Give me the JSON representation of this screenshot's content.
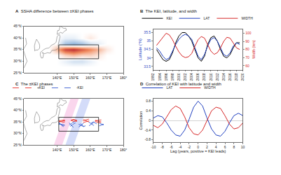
{
  "chart_data": [
    {
      "label": "A",
      "type": "heatmap",
      "title": "SSHA difference between ±KEI phases",
      "x": [
        125,
        130,
        135,
        140,
        145,
        150,
        155,
        160,
        165,
        170,
        175,
        180
      ],
      "y": [
        25,
        27.5,
        30,
        32.5,
        35,
        37.5,
        40,
        42.5,
        45
      ],
      "z": [
        [
          0,
          0,
          0,
          0,
          0,
          0,
          0,
          0,
          0,
          0,
          0,
          0
        ],
        [
          0,
          0,
          0,
          0,
          0,
          0,
          0,
          0,
          0,
          0,
          0,
          0
        ],
        [
          0,
          0,
          0,
          0,
          -1,
          -2,
          -2,
          -1,
          0,
          0,
          0,
          0
        ],
        [
          0,
          0,
          0,
          0,
          2,
          3,
          2,
          2,
          1,
          0,
          0,
          0
        ],
        [
          0,
          0,
          0,
          3,
          8,
          9,
          7,
          5,
          3,
          1,
          0,
          0
        ],
        [
          0,
          0,
          0,
          0,
          -4,
          -5,
          -4,
          -2,
          -1,
          0,
          0,
          0
        ],
        [
          0,
          0,
          0,
          0,
          -1,
          -1,
          0,
          1,
          0,
          0,
          0,
          0
        ],
        [
          0,
          0,
          0,
          0,
          0,
          0,
          0,
          0,
          0,
          0,
          0,
          0
        ],
        [
          0,
          0,
          0,
          0,
          0,
          0,
          0,
          0,
          0,
          0,
          0,
          0
        ]
      ],
      "zlim": [
        -10,
        10
      ],
      "xlim": [
        120,
        180
      ],
      "ylim": [
        25,
        45
      ],
      "xticks": [
        {
          "value": 140,
          "label": "140°E"
        },
        {
          "value": 150,
          "label": "150°E"
        },
        {
          "value": 160,
          "label": "160°E"
        },
        {
          "value": 170,
          "label": "170°E"
        },
        {
          "value": 180,
          "label": "180°"
        }
      ],
      "yticks": [
        {
          "value": 25,
          "label": "25°N"
        },
        {
          "value": 30,
          "label": "30°N"
        },
        {
          "value": 35,
          "label": "35°N"
        },
        {
          "value": 40,
          "label": "40°N"
        },
        {
          "value": 45,
          "label": "45°N"
        }
      ],
      "land": [
        {
          "lon": [
            129.8,
            130.5,
            131.4,
            131.8,
            131.0,
            132.5,
            134.2,
            135.1,
            135.8,
            136.9,
            137.8,
            138.8,
            139.8,
            140.8,
            140.6,
            141.0,
            141.5,
            141.8,
            141.4,
            140.8,
            140.0,
            139.8,
            139.4,
            138.5,
            137.3,
            136.5,
            135.8,
            135.0,
            133.5,
            132.0,
            130.9,
            130.0,
            129.8
          ],
          "lat": [
            32.7,
            31.3,
            31.4,
            32.9,
            33.7,
            33.2,
            33.6,
            33.5,
            33.4,
            34.6,
            34.6,
            34.7,
            35.0,
            35.7,
            36.9,
            38.2,
            39.0,
            40.5,
            41.4,
            41.2,
            40.6,
            39.5,
            38.2,
            37.5,
            37.0,
            36.8,
            36.2,
            35.6,
            35.5,
            35.0,
            34.3,
            33.8,
            32.7
          ]
        },
        {
          "lon": [
            140.0,
            141.0,
            142.0,
            143.3,
            144.4,
            145.6,
            145.2,
            144.0,
            142.8,
            141.8,
            141.6,
            141.1,
            140.3,
            140.0
          ],
          "lat": [
            41.5,
            41.8,
            42.4,
            42.0,
            42.9,
            43.3,
            44.2,
            44.1,
            44.6,
            45.4,
            44.4,
            43.2,
            43.2,
            41.5
          ]
        },
        {
          "lon": [
            126.5,
            127.0,
            128.5,
            129.4,
            129.5,
            129.2,
            128.3,
            127.6,
            126.8,
            126.3,
            126.5
          ],
          "lat": [
            34.4,
            34.7,
            34.8,
            35.5,
            36.5,
            37.5,
            38.6,
            39.4,
            38.0,
            36.5,
            34.4
          ]
        },
        {
          "lon": [
            120.0,
            121.0,
            121.9,
            121.0,
            120.2,
            119.6,
            120.7,
            121.6,
            121.0
          ],
          "lat": [
            27.0,
            28.5,
            30.0,
            31.7,
            33.5,
            35.0,
            36.3,
            37.4,
            40.0
          ]
        }
      ],
      "box": {
        "lon": [
          141,
          165
        ],
        "lat": [
          31,
          37
        ]
      }
    },
    {
      "label": "B",
      "type": "line",
      "title": "The KEI, latitude, and width",
      "x": [
        1993,
        1994,
        1995,
        1996,
        1997,
        1998,
        1999,
        2000,
        2001,
        2002,
        2003,
        2004,
        2005,
        2006,
        2007,
        2008,
        2009,
        2010,
        2011,
        2012,
        2013,
        2014,
        2015,
        2016,
        2017,
        2018,
        2019
      ],
      "series": [
        {
          "name": "KEI",
          "color": "#000000",
          "values": [
            34.5,
            34.2,
            33.9,
            33.8,
            33.9,
            34.3,
            34.9,
            35.3,
            35.5,
            35.5,
            35.3,
            35.0,
            34.5,
            34.0,
            33.8,
            34.1,
            34.8,
            35.2,
            35.3,
            35.0,
            34.5,
            34.1,
            34.0,
            34.2,
            34.6,
            34.9,
            34.9
          ]
        },
        {
          "name": "LAT",
          "color": "#1f3fbf",
          "values": [
            34.6,
            34.4,
            34.1,
            33.9,
            34.0,
            34.4,
            34.8,
            35.1,
            35.3,
            35.4,
            35.3,
            35.1,
            34.6,
            34.1,
            33.9,
            34.2,
            34.7,
            35.1,
            35.2,
            35.0,
            34.6,
            34.2,
            34.1,
            34.3,
            34.7,
            34.9,
            34.8
          ]
        },
        {
          "name": "WIDTH",
          "color": "#d62728",
          "axis": "y2",
          "values": [
            85,
            90,
            96,
            100,
            98,
            92,
            84,
            77,
            72,
            70,
            71,
            75,
            84,
            92,
            96,
            94,
            86,
            78,
            74,
            76,
            82,
            90,
            95,
            94,
            88,
            82,
            80
          ]
        }
      ],
      "xlim": [
        1992,
        2020
      ],
      "xticks": [
        1992,
        1994,
        1996,
        1998,
        2000,
        2002,
        2004,
        2006,
        2008,
        2010,
        2012,
        2014,
        2016,
        2018,
        2020
      ],
      "ylim": [
        33.3,
        35.7
      ],
      "yticks": [
        33.5,
        34,
        34.5,
        35,
        35.5
      ],
      "y2lim": [
        55,
        105
      ],
      "y2ticks": [
        60,
        70,
        80,
        90,
        100
      ],
      "ylabel": "Latitude (°N)",
      "y2label": "Width (km)",
      "legend": "above"
    },
    {
      "label": "C",
      "type": "map",
      "title": "The ±KEI phases",
      "xlim": [
        120,
        180
      ],
      "ylim": [
        25,
        45
      ],
      "xticks": [
        {
          "value": 140,
          "label": "140°E"
        },
        {
          "value": 150,
          "label": "150°E"
        },
        {
          "value": 160,
          "label": "160°E"
        },
        {
          "value": 170,
          "label": "170°E"
        },
        {
          "value": 180,
          "label": "180°"
        }
      ],
      "yticks": [
        {
          "value": 25,
          "label": "25°N"
        },
        {
          "value": 30,
          "label": "30°N"
        },
        {
          "value": 35,
          "label": "35°N"
        },
        {
          "value": 40,
          "label": "40°N"
        },
        {
          "value": 45,
          "label": "45°N"
        }
      ],
      "bands": [
        {
          "color": "#f5a3d6",
          "lon": [
            138,
            143,
            153,
            148
          ],
          "lat": [
            25,
            25,
            45,
            45
          ]
        },
        {
          "color": "#9fb2f2",
          "lon": [
            145,
            150,
            160,
            155
          ],
          "lat": [
            25,
            25,
            45,
            45
          ]
        }
      ],
      "lon": [
        141,
        144,
        147,
        150,
        153,
        156,
        159,
        162,
        165,
        168
      ],
      "series": [
        {
          "name": "+KEI",
          "color": "#e8312a",
          "line_style": "dashed",
          "paths": [
            [
              35.5,
              35.8,
              35.3,
              35.9,
              35.0,
              35.6,
              36.2,
              35.4,
              35.8,
              36.0
            ],
            [
              35.0,
              35.4,
              36.0,
              35.2,
              35.5,
              34.8,
              35.3,
              36.0,
              35.2,
              34.8
            ],
            [
              35.2,
              34.9,
              35.6,
              36.1,
              35.4,
              36.0,
              35.0,
              35.5,
              34.6,
              35.2
            ]
          ]
        },
        {
          "name": "-KEI",
          "color": "#3a5fd0",
          "line_style": "dashed",
          "paths": [
            [
              34.5,
              33.2,
              34.8,
              32.5,
              34.0,
              33.0,
              35.0,
              33.5,
              34.5,
              33.8
            ],
            [
              34.8,
              32.8,
              33.5,
              35.0,
              32.8,
              34.5,
              33.2,
              34.8,
              33.2,
              34.0
            ],
            [
              34.0,
              33.8,
              32.6,
              34.2,
              35.2,
              33.0,
              34.0,
              35.0,
              33.6,
              33.8
            ]
          ]
        }
      ],
      "land": [
        {
          "lon": [
            129.8,
            130.5,
            131.4,
            131.8,
            131.0,
            132.5,
            134.2,
            135.1,
            135.8,
            136.9,
            137.8,
            138.8,
            139.8,
            140.8,
            140.6,
            141.0,
            141.5,
            141.8,
            141.4,
            140.8,
            140.0,
            139.8,
            139.4,
            138.5,
            137.3,
            136.5,
            135.8,
            135.0,
            133.5,
            132.0,
            130.9,
            130.0,
            129.8
          ],
          "lat": [
            32.7,
            31.3,
            31.4,
            32.9,
            33.7,
            33.2,
            33.6,
            33.5,
            33.4,
            34.6,
            34.6,
            34.7,
            35.0,
            35.7,
            36.9,
            38.2,
            39.0,
            40.5,
            41.4,
            41.2,
            40.6,
            39.5,
            38.2,
            37.5,
            37.0,
            36.8,
            36.2,
            35.6,
            35.5,
            35.0,
            34.3,
            33.8,
            32.7
          ]
        },
        {
          "lon": [
            140.0,
            141.0,
            142.0,
            143.3,
            144.4,
            145.6,
            145.2,
            144.0,
            142.8,
            141.8,
            141.6,
            141.1,
            140.3,
            140.0
          ],
          "lat": [
            41.5,
            41.8,
            42.4,
            42.0,
            42.9,
            43.3,
            44.2,
            44.1,
            44.6,
            45.4,
            44.4,
            43.2,
            43.2,
            41.5
          ]
        },
        {
          "lon": [
            126.5,
            127.0,
            128.5,
            129.4,
            129.5,
            129.2,
            128.3,
            127.6,
            126.8,
            126.3,
            126.5
          ],
          "lat": [
            34.4,
            34.7,
            34.8,
            35.5,
            36.5,
            37.5,
            38.6,
            39.4,
            38.0,
            36.5,
            34.4
          ]
        },
        {
          "lon": [
            120.0,
            121.0,
            121.9,
            121.0,
            120.2,
            119.6,
            120.7,
            121.6,
            121.0
          ],
          "lat": [
            27.0,
            28.5,
            30.0,
            31.7,
            33.5,
            35.0,
            36.3,
            37.4,
            40.0
          ]
        }
      ],
      "box": {
        "lon": [
          141,
          165
        ],
        "lat": [
          31,
          37
        ]
      },
      "legend": "above"
    },
    {
      "label": "D",
      "type": "line",
      "title": "Correlation of KEI with latitude and width",
      "x": [
        -10,
        -9,
        -8,
        -7,
        -6,
        -5,
        -4,
        -3,
        -2,
        -1,
        0,
        1,
        2,
        3,
        4,
        5,
        6,
        7,
        8,
        9,
        10
      ],
      "series": [
        {
          "name": "LAT",
          "color": "#1f3fbf",
          "values": [
            0.1,
            0.2,
            0.15,
            -0.1,
            -0.4,
            -0.6,
            -0.65,
            -0.4,
            0.05,
            0.55,
            0.8,
            0.6,
            0.1,
            -0.35,
            -0.6,
            -0.65,
            -0.45,
            -0.1,
            0.2,
            0.3,
            0.2
          ]
        },
        {
          "name": "WIDTH",
          "color": "#d62728",
          "values": [
            -0.2,
            -0.3,
            -0.15,
            0.15,
            0.45,
            0.6,
            0.5,
            0.15,
            -0.3,
            -0.55,
            -0.6,
            -0.4,
            0,
            0.4,
            0.55,
            0.5,
            0.2,
            -0.15,
            -0.35,
            -0.3,
            -0.1
          ]
        }
      ],
      "xlim": [
        -10,
        10
      ],
      "xticks": [
        -10,
        -8,
        -6,
        -4,
        -2,
        0,
        2,
        4,
        6,
        8,
        10
      ],
      "ylim": [
        -0.9,
        0.9
      ],
      "yticks": [
        -0.8,
        -0.4,
        0,
        0.4,
        0.8
      ],
      "xlabel": "Lag (years, positive = KEI leads)",
      "ylabel": "Correlation",
      "legend": "above"
    }
  ]
}
